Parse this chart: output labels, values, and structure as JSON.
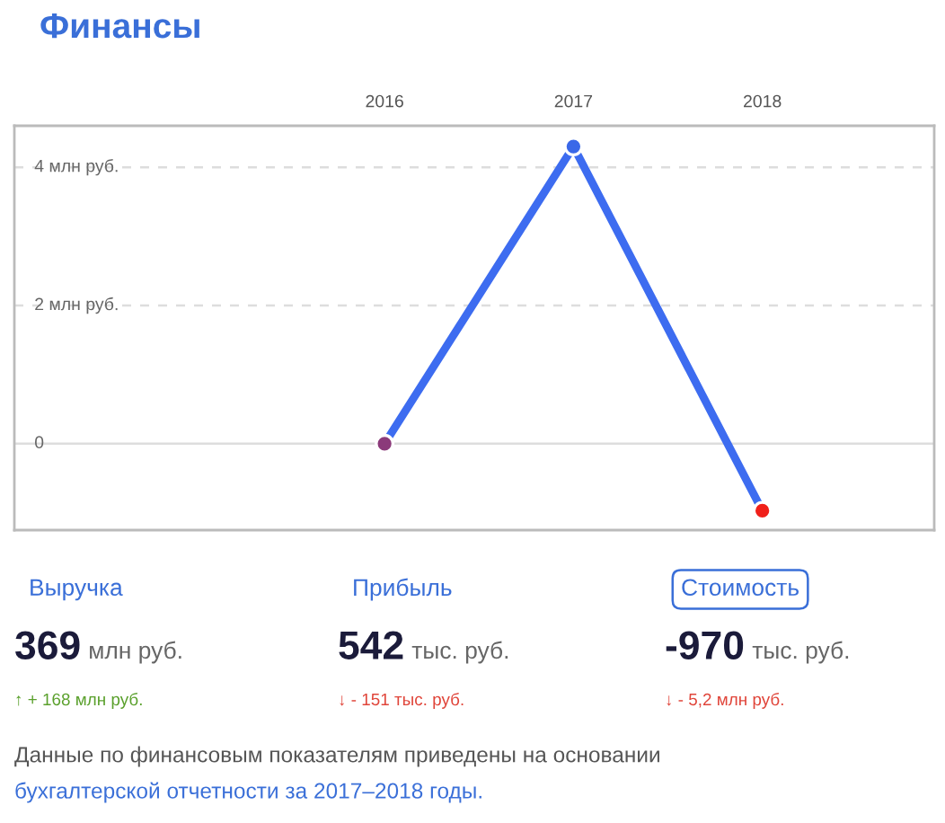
{
  "chart_data": {
    "type": "line",
    "title": "Финансы",
    "categories": [
      "2016",
      "2017",
      "2018"
    ],
    "series": [
      {
        "color": "#3d6cf0",
        "colors": [
          "#8b3a7a",
          "#3a68e8",
          "#f0201a"
        ],
        "values": [
          0,
          4.3,
          -0.97
        ]
      }
    ],
    "ylim": [
      -1.25,
      4.6
    ],
    "yticks": [
      {
        "value": 0,
        "label": "0"
      },
      {
        "value": 2,
        "label": "2 млн руб."
      },
      {
        "value": 4,
        "label": "4 млн руб."
      }
    ],
    "grid": "y",
    "marker": "circle",
    "line_style": "solid",
    "annotations": [
      "Выручка",
      "Прибыль",
      "Стоимость",
      "369",
      "542",
      "-970",
      "млн руб.",
      "тыс. руб.",
      "тыс. руб.",
      "↑ + 168 млн руб.",
      "↓ - 151 тыс. руб.",
      "↓ - 5,2 млн руб.",
      "Данные по финансовым показателям приведены на основании",
      "бухгалтерской отчетности за 2017–2018 годы."
    ]
  }
}
